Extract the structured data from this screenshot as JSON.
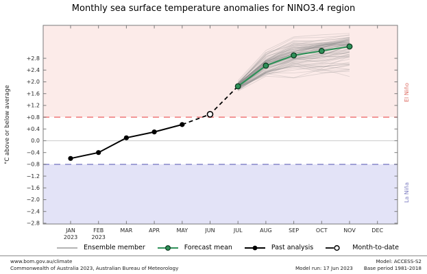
{
  "chart_data": {
    "type": "line",
    "title": "Monthly sea surface temperature anomalies for NINO3.4 region",
    "ylabel": "°C above or below average",
    "ylim": [
      -2.85,
      3.92
    ],
    "grid": "zero-line-only",
    "x_categories": [
      {
        "label": "JAN",
        "year": "2023"
      },
      {
        "label": "FEB",
        "year": "2023"
      },
      {
        "label": "MAR"
      },
      {
        "label": "APR"
      },
      {
        "label": "MAY"
      },
      {
        "label": "JUN"
      },
      {
        "label": "JUL"
      },
      {
        "label": "AUG"
      },
      {
        "label": "SEP"
      },
      {
        "label": "OCT"
      },
      {
        "label": "NOV"
      },
      {
        "label": "DEC"
      }
    ],
    "y_ticks": [
      {
        "v": 2.8,
        "label": "+2.8"
      },
      {
        "v": 2.4,
        "label": "+2.4"
      },
      {
        "v": 2.0,
        "label": "+2.0"
      },
      {
        "v": 1.6,
        "label": "+1.6"
      },
      {
        "v": 1.2,
        "label": "+1.2"
      },
      {
        "v": 0.8,
        "label": "+0.8"
      },
      {
        "v": 0.4,
        "label": "+0.4"
      },
      {
        "v": 0.0,
        "label": "0.0"
      },
      {
        "v": -0.4,
        "label": "−0.4"
      },
      {
        "v": -0.8,
        "label": "−0.8"
      },
      {
        "v": -1.2,
        "label": "−1.2"
      },
      {
        "v": -1.6,
        "label": "−1.6"
      },
      {
        "v": -2.0,
        "label": "−2.0"
      },
      {
        "v": -2.4,
        "label": "−2.4"
      },
      {
        "v": -2.8,
        "label": "−2.8"
      }
    ],
    "thresholds": {
      "el_nino_value": 0.8,
      "la_nina_value": -0.8
    },
    "zones": {
      "upper_label": "El Niño",
      "lower_label": "La Niña"
    },
    "series": [
      {
        "name": "Past analysis",
        "type": "past",
        "month_indices": [
          0,
          1,
          2,
          3,
          4
        ],
        "months": [
          "JAN",
          "FEB",
          "MAR",
          "APR",
          "MAY"
        ],
        "values": [
          -0.6,
          -0.4,
          0.1,
          0.3,
          0.55
        ]
      },
      {
        "name": "Month-to-date",
        "type": "month_to_date",
        "month_indices": [
          5
        ],
        "months": [
          "JUN"
        ],
        "values": [
          0.9
        ]
      },
      {
        "name": "Forecast mean",
        "type": "forecast",
        "month_indices": [
          6,
          7,
          8,
          9,
          10
        ],
        "months": [
          "JUL",
          "AUG",
          "SEP",
          "OCT",
          "NOV"
        ],
        "values": [
          1.85,
          2.55,
          2.9,
          3.05,
          3.2
        ]
      },
      {
        "name": "Ensemble member",
        "type": "ensemble",
        "month_indices": [
          6,
          7,
          8,
          9,
          10
        ],
        "member_count": 75,
        "spread_above_mean": [
          0.18,
          0.6,
          0.75,
          0.62,
          0.58
        ],
        "spread_below_mean": [
          0.2,
          0.55,
          0.95,
          1.1,
          1.3
        ]
      }
    ]
  },
  "legend": {
    "items": [
      {
        "id": "ensemble",
        "label": "Ensemble member"
      },
      {
        "id": "forecast",
        "label": "Forecast mean"
      },
      {
        "id": "past",
        "label": "Past analysis"
      },
      {
        "id": "mtd",
        "label": "Month-to-date"
      }
    ]
  },
  "footer": {
    "site": "www.bom.gov.au/climate",
    "copyright": "Commonwealth of Australia 2023, Australian Bureau of Meteorology",
    "model": "Model: ACCESS-S2",
    "model_run": "Model run: 17 Jun 2023",
    "base_period": "Base period 1981-2018"
  },
  "colors": {
    "el_nino_band": "#fcebe9",
    "la_nina_band": "#e3e3f7",
    "el_nino_line": "#f08080",
    "la_nina_line": "#8e8ecd",
    "el_nino_label": "#dd6f66",
    "la_nina_label": "#7d7dc1",
    "forecast_mean": "#2e9058",
    "forecast_marker_edge": "#0d3a20",
    "past_analysis": "#000000",
    "ensemble_member": "#8a8a8a",
    "zero_line": "#cccccc",
    "axis": "#7a7a7a",
    "tick_text": "#262626"
  }
}
